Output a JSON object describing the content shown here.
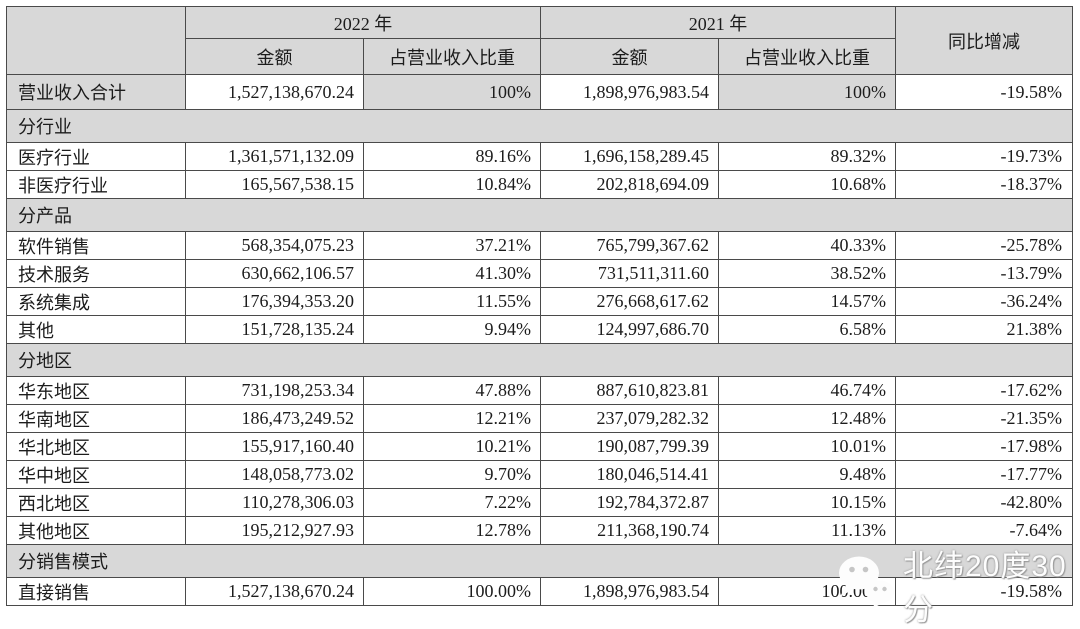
{
  "colors": {
    "header_bg": "#d8d8d8",
    "shaded_cell_bg": "#d8d8d8",
    "border": "#4a4a4a",
    "text": "#1c1c1c",
    "watermark_text": "#ffffff"
  },
  "table": {
    "col_groups": [
      {
        "label": "2022 年"
      },
      {
        "label": "2021 年"
      }
    ],
    "sub_headers": {
      "amount": "金额",
      "share": "占营业收入比重"
    },
    "yoy_header": "同比增减",
    "rows": [
      {
        "type": "total",
        "label": "营业收入合计",
        "amount_2022": "1,527,138,670.24",
        "share_2022": "100%",
        "amount_2021": "1,898,976,983.54",
        "share_2021": "100%",
        "yoy": "-19.58%"
      },
      {
        "type": "section",
        "label": "分行业"
      },
      {
        "type": "data",
        "label": "医疗行业",
        "amount_2022": "1,361,571,132.09",
        "share_2022": "89.16%",
        "amount_2021": "1,696,158,289.45",
        "share_2021": "89.32%",
        "yoy": "-19.73%"
      },
      {
        "type": "data",
        "label": "非医疗行业",
        "amount_2022": "165,567,538.15",
        "share_2022": "10.84%",
        "amount_2021": "202,818,694.09",
        "share_2021": "10.68%",
        "yoy": "-18.37%"
      },
      {
        "type": "section",
        "label": "分产品"
      },
      {
        "type": "data",
        "label": "软件销售",
        "amount_2022": "568,354,075.23",
        "share_2022": "37.21%",
        "amount_2021": "765,799,367.62",
        "share_2021": "40.33%",
        "yoy": "-25.78%"
      },
      {
        "type": "data",
        "label": "技术服务",
        "amount_2022": "630,662,106.57",
        "share_2022": "41.30%",
        "amount_2021": "731,511,311.60",
        "share_2021": "38.52%",
        "yoy": "-13.79%"
      },
      {
        "type": "data",
        "label": "系统集成",
        "amount_2022": "176,394,353.20",
        "share_2022": "11.55%",
        "amount_2021": "276,668,617.62",
        "share_2021": "14.57%",
        "yoy": "-36.24%"
      },
      {
        "type": "data",
        "label": "其他",
        "amount_2022": "151,728,135.24",
        "share_2022": "9.94%",
        "amount_2021": "124,997,686.70",
        "share_2021": "6.58%",
        "yoy": "21.38%"
      },
      {
        "type": "section",
        "label": "分地区"
      },
      {
        "type": "data",
        "label": "华东地区",
        "amount_2022": "731,198,253.34",
        "share_2022": "47.88%",
        "amount_2021": "887,610,823.81",
        "share_2021": "46.74%",
        "yoy": "-17.62%"
      },
      {
        "type": "data",
        "label": "华南地区",
        "amount_2022": "186,473,249.52",
        "share_2022": "12.21%",
        "amount_2021": "237,079,282.32",
        "share_2021": "12.48%",
        "yoy": "-21.35%"
      },
      {
        "type": "data",
        "label": "华北地区",
        "amount_2022": "155,917,160.40",
        "share_2022": "10.21%",
        "amount_2021": "190,087,799.39",
        "share_2021": "10.01%",
        "yoy": "-17.98%"
      },
      {
        "type": "data",
        "label": "华中地区",
        "amount_2022": "148,058,773.02",
        "share_2022": "9.70%",
        "amount_2021": "180,046,514.41",
        "share_2021": "9.48%",
        "yoy": "-17.77%"
      },
      {
        "type": "data",
        "label": "西北地区",
        "amount_2022": "110,278,306.03",
        "share_2022": "7.22%",
        "amount_2021": "192,784,372.87",
        "share_2021": "10.15%",
        "yoy": "-42.80%"
      },
      {
        "type": "data",
        "label": "其他地区",
        "amount_2022": "195,212,927.93",
        "share_2022": "12.78%",
        "amount_2021": "211,368,190.74",
        "share_2021": "11.13%",
        "yoy": "-7.64%"
      },
      {
        "type": "section",
        "label": "分销售模式"
      },
      {
        "type": "data",
        "label": "直接销售",
        "amount_2022": "1,527,138,670.24",
        "share_2022": "100.00%",
        "amount_2021": "1,898,976,983.54",
        "share_2021": "100.00%",
        "yoy": "-19.58%"
      }
    ]
  },
  "watermark": {
    "icon": "wechat-icon",
    "text": "北纬20度30分"
  }
}
